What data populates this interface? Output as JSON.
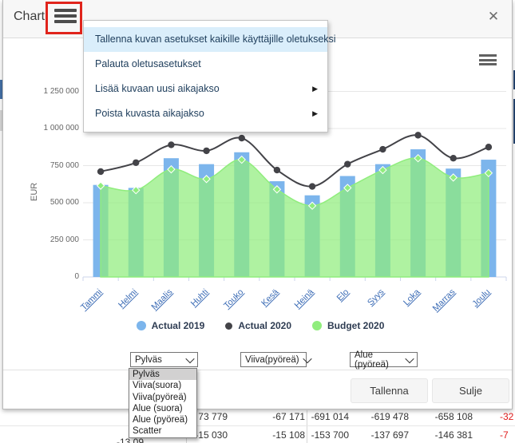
{
  "window": {
    "title": "Chart",
    "close_icon": "✕"
  },
  "context_menu": {
    "items": [
      {
        "label": "Tallenna kuvan asetukset kaikille käyttäjille oletukseksi",
        "highlighted": true,
        "has_submenu": false
      },
      {
        "label": "Palauta oletusasetukset",
        "highlighted": false,
        "has_submenu": false
      },
      {
        "label": "Lisää kuvaan uusi aikajakso",
        "highlighted": false,
        "has_submenu": true
      },
      {
        "label": "Poista kuvasta aikajakso",
        "highlighted": false,
        "has_submenu": true
      }
    ]
  },
  "chart_data": {
    "type": "combo",
    "categories": [
      "Tammi",
      "Helmi",
      "Maalis",
      "Huhti",
      "Touko",
      "Kesä",
      "Heinä",
      "Elo",
      "Syys",
      "Loka",
      "Marras",
      "Joulu"
    ],
    "series": [
      {
        "name": "Actual 2019",
        "type": "bar",
        "color": "#7cb5ec",
        "values": [
          620000,
          600000,
          800000,
          760000,
          840000,
          645000,
          550000,
          680000,
          760000,
          860000,
          730000,
          790000
        ]
      },
      {
        "name": "Actual 2020",
        "type": "line",
        "color": "#434348",
        "values": [
          710000,
          770000,
          890000,
          850000,
          935000,
          720000,
          610000,
          760000,
          860000,
          955000,
          800000,
          875000
        ]
      },
      {
        "name": "Budget 2020",
        "type": "area",
        "color": "#90ed7d",
        "values": [
          615000,
          585000,
          725000,
          660000,
          790000,
          590000,
          480000,
          600000,
          720000,
          800000,
          670000,
          700000
        ]
      }
    ],
    "ylabel": "EUR",
    "xlabel": "",
    "ylim": [
      0,
      1250000
    ],
    "ytick_step": 250000,
    "ytick_labels": [
      "0",
      "250 000",
      "500 000",
      "750 000",
      "1 000 000",
      "1 250 000"
    ],
    "grid": true,
    "legend_position": "bottom"
  },
  "series_type_selects": [
    {
      "value": "Pylväs"
    },
    {
      "value": "Viiva(pyöreä)"
    },
    {
      "value": "Alue (pyöreä)"
    }
  ],
  "open_dropdown": {
    "options": [
      "Pylväs",
      "Viiva(suora)",
      "Viiva(pyöreä)",
      "Alue (suora)",
      "Alue (pyöreä)",
      "Scatter"
    ],
    "highlighted": "Pylväs"
  },
  "footer": {
    "save_label": "Tallenna",
    "close_label": "Sulje"
  },
  "background_table": {
    "rows": [
      {
        "cells": [
          "",
          "73 779",
          "-67 171",
          "-691 014",
          "-619 478",
          "-658 108"
        ],
        "overflow_value": "-32"
      },
      {
        "cells": [
          "",
          "-15 030",
          "-15 108",
          "-153 700",
          "-137 697",
          "-146 381"
        ],
        "overflow_value": "-7",
        "partial_first_cell": "-13 09"
      }
    ]
  },
  "colors": {
    "bar_blue": "#7cb5ec",
    "line_dark": "#434348",
    "area_green": "#90ed7d",
    "menu_highlight": "#daeefb",
    "negative_red": "#e01a1a",
    "annotation_red": "#e0241c",
    "axis_link_blue": "#3d6db6"
  }
}
